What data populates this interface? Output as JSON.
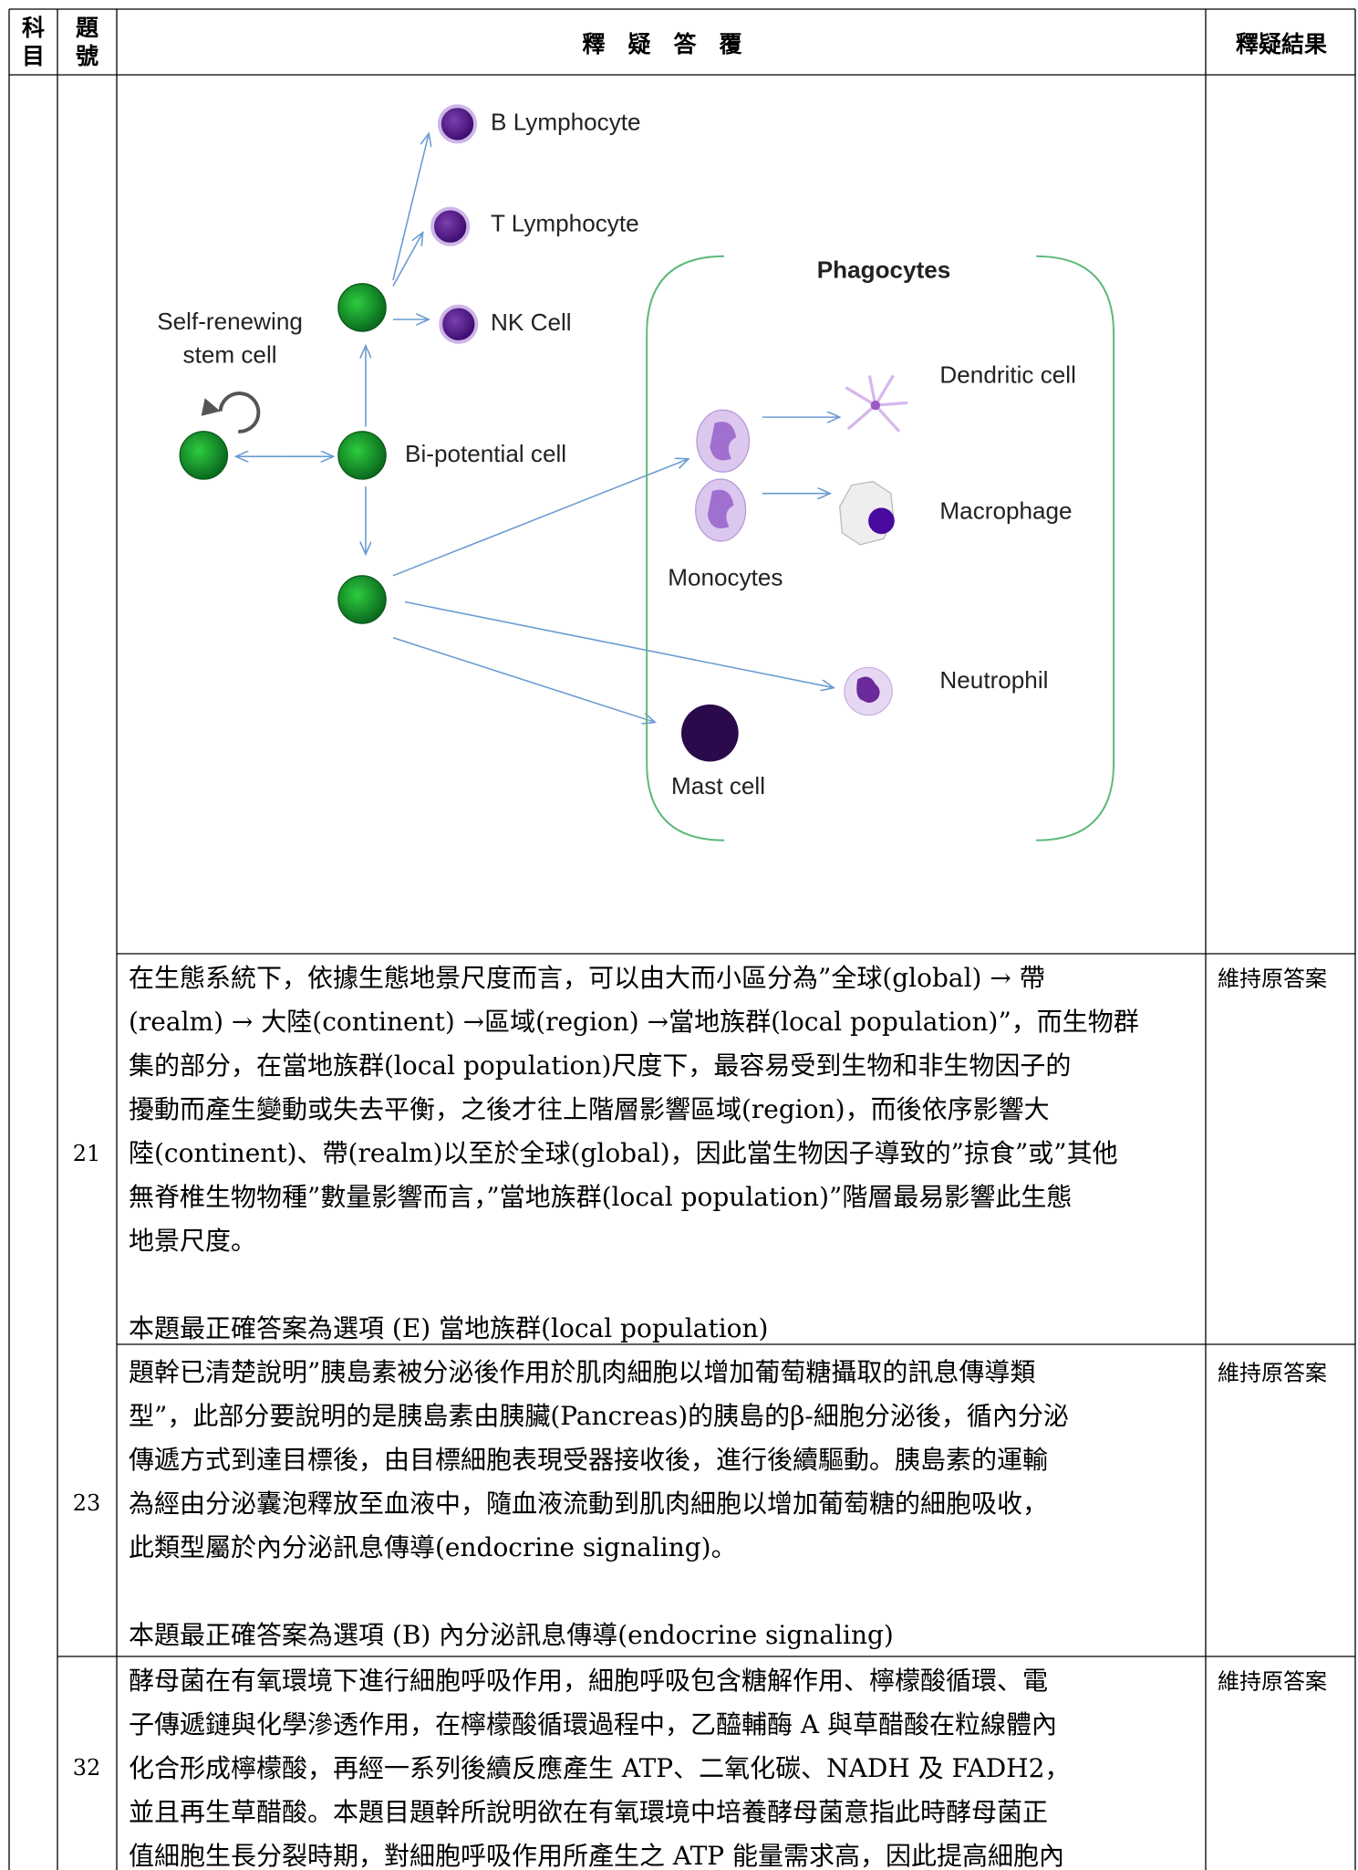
{
  "header": {
    "subject": "科目",
    "number": "題號",
    "explanation": "釋　疑　答　覆",
    "result": "釋疑結果"
  },
  "diagram": {
    "labels": {
      "b_lymphocyte": "B Lymphocyte",
      "t_lymphocyte": "T Lymphocyte",
      "nk_cell": "NK Cell",
      "self_renewing": "Self-renewing",
      "stem_cell": "stem cell",
      "bi_potential": "Bi-potential cell",
      "phagocytes": "Phagocytes",
      "dendritic": "Dendritic cell",
      "macrophage": "Macrophage",
      "monocytes": "Monocytes",
      "neutrophil": "Neutrophil",
      "mast_cell": "Mast cell"
    }
  },
  "rows": [
    {
      "number": "21",
      "lines": [
        "在生態系統下，依據生態地景尺度而言，可以由大而小區分為”全球(global) → 帶",
        "(realm) → 大陸(continent) →區域(region) →當地族群(local population)”，而生物群",
        "集的部分，在當地族群(local population)尺度下，最容易受到生物和非生物因子的",
        "擾動而產生變動或失去平衡，之後才往上階層影響區域(region)，而後依序影響大",
        "陸(continent)、帶(realm)以至於全球(global)，因此當生物因子導致的”掠食”或”其他",
        "無脊椎生物物種”數量影響而言，”當地族群(local population)”階層最易影響此生態",
        "地景尺度。"
      ],
      "answer": "本題最正確答案為選項 (E) 當地族群(local population)",
      "result": "維持原答案"
    },
    {
      "number": "23",
      "lines": [
        "題幹已清楚說明”胰島素被分泌後作用於肌肉細胞以增加葡萄糖攝取的訊息傳導類",
        "型”，此部分要說明的是胰島素由胰臟(Pancreas)的胰島的β-細胞分泌後，循內分泌",
        "傳遞方式到達目標後，由目標細胞表現受器接收後，進行後續驅動。胰島素的運輸",
        "為經由分泌囊泡釋放至血液中，隨血液流動到肌肉細胞以增加葡萄糖的細胞吸收，",
        "此類型屬於內分泌訊息傳導(endocrine signaling)。"
      ],
      "answer": "本題最正確答案為選項 (B) 內分泌訊息傳導(endocrine signaling)",
      "result": "維持原答案"
    },
    {
      "number": "32",
      "lines": [
        "酵母菌在有氧環境下進行細胞呼吸作用，細胞呼吸包含糖解作用、檸檬酸循環、電",
        "子傳遞鏈與化學滲透作用，在檸檬酸循環過程中，乙醯輔酶 A 與草醋酸在粒線體內",
        "化合形成檸檬酸，再經一系列後續反應產生 ATP、二氧化碳、NADH 及 FADH2，",
        "並且再生草醋酸。本題目題幹所說明欲在有氧環境中培養酵母菌意指此時酵母菌正",
        "值細胞生長分裂時期，對細胞呼吸作用所產生之 ATP 能量需求高，因此提高細胞內"
      ],
      "result": "維持原答案"
    }
  ]
}
